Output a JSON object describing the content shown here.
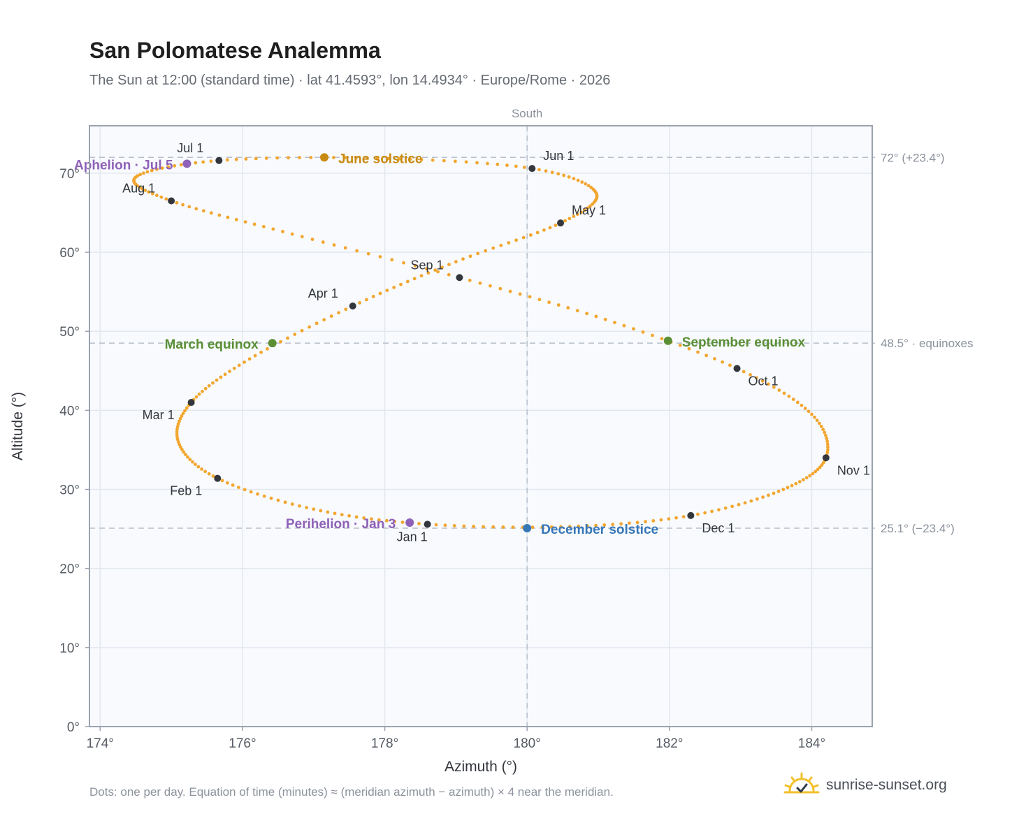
{
  "header": {
    "title": "San Polomatese Analemma",
    "subtitle": "The Sun at 12:00 (standard time) · lat 41.4593°, lon 14.4934° · Europe/Rome · 2026"
  },
  "footer": {
    "note": "Dots: one per day. Equation of time (minutes) ≈ (meridian azimuth − azimuth) × 4 near the meridian.",
    "brand": "sunrise-sunset.org",
    "brand_icon": "sun-horizon-icon"
  },
  "chart_data": {
    "type": "scatter",
    "title": "San Polomatese Analemma",
    "xlabel": "Azimuth (°)",
    "ylabel": "Altitude (°)",
    "xlim": [
      173.85,
      184.85
    ],
    "ylim": [
      0,
      76
    ],
    "xticks": [
      174,
      176,
      178,
      180,
      182,
      184
    ],
    "yticks": [
      0,
      10,
      20,
      30,
      40,
      50,
      60,
      70
    ],
    "x_tick_suffix": "°",
    "y_tick_suffix": "°",
    "grid": true,
    "meridian": {
      "x": 180,
      "label": "South"
    },
    "reference_lines": [
      {
        "y": 72.0,
        "label": "72° (+23.4°)"
      },
      {
        "y": 48.5,
        "label": "48.5° · equinoxes"
      },
      {
        "y": 25.1,
        "label": "25.1° (−23.4°)"
      }
    ],
    "month_points": [
      {
        "label": "Jan 1",
        "x": 178.6,
        "y": 25.6
      },
      {
        "label": "Feb 1",
        "x": 175.65,
        "y": 31.4
      },
      {
        "label": "Mar 1",
        "x": 175.28,
        "y": 41.0
      },
      {
        "label": "Apr 1",
        "x": 177.55,
        "y": 53.2
      },
      {
        "label": "May 1",
        "x": 180.47,
        "y": 63.7
      },
      {
        "label": "Jun 1",
        "x": 180.07,
        "y": 70.6
      },
      {
        "label": "Jul 1",
        "x": 175.67,
        "y": 71.6
      },
      {
        "label": "Aug 1",
        "x": 175.0,
        "y": 66.5
      },
      {
        "label": "Sep 1",
        "x": 179.05,
        "y": 56.8
      },
      {
        "label": "Oct 1",
        "x": 182.95,
        "y": 45.3
      },
      {
        "label": "Nov 1",
        "x": 184.2,
        "y": 34.0
      },
      {
        "label": "Dec 1",
        "x": 182.3,
        "y": 26.7
      }
    ],
    "special_points": [
      {
        "label": "June solstice",
        "x": 177.15,
        "y": 72.0,
        "color": "#c98a12"
      },
      {
        "label": "Aphelion · Jul 5",
        "x": 175.22,
        "y": 71.2,
        "color": "#8e62b8"
      },
      {
        "label": "March equinox",
        "x": 176.42,
        "y": 48.5,
        "color": "#5a8f35"
      },
      {
        "label": "September equinox",
        "x": 181.98,
        "y": 48.8,
        "color": "#5a8f35"
      },
      {
        "label": "Perihelion · Jan 3",
        "x": 178.35,
        "y": 25.8,
        "color": "#8e62b8"
      },
      {
        "label": "December solstice",
        "x": 180.0,
        "y": 25.1,
        "color": "#3677b8"
      }
    ],
    "curve_keypoints": [
      {
        "date": "Jan 1",
        "x": 178.6,
        "y": 25.6
      },
      {
        "date": "Jan 15",
        "x": 177.0,
        "y": 27.5
      },
      {
        "date": "Feb 1",
        "x": 175.65,
        "y": 31.4
      },
      {
        "date": "Feb 15",
        "x": 175.1,
        "y": 36.0
      },
      {
        "date": "Mar 1",
        "x": 175.28,
        "y": 41.0
      },
      {
        "date": "Mar 15",
        "x": 176.1,
        "y": 46.5
      },
      {
        "date": "Apr 1",
        "x": 177.55,
        "y": 53.2
      },
      {
        "date": "Apr 15",
        "x": 179.0,
        "y": 58.8
      },
      {
        "date": "May 1",
        "x": 180.47,
        "y": 63.7
      },
      {
        "date": "May 15",
        "x": 180.97,
        "y": 67.5
      },
      {
        "date": "Jun 1",
        "x": 180.07,
        "y": 70.6
      },
      {
        "date": "Jun 15",
        "x": 177.9,
        "y": 71.9
      },
      {
        "date": "Jul 1",
        "x": 175.67,
        "y": 71.6
      },
      {
        "date": "Jul 15",
        "x": 174.5,
        "y": 69.5
      },
      {
        "date": "Aug 1",
        "x": 175.0,
        "y": 66.5
      },
      {
        "date": "Aug 15",
        "x": 176.7,
        "y": 62.3
      },
      {
        "date": "Sep 1",
        "x": 179.05,
        "y": 56.8
      },
      {
        "date": "Sep 15",
        "x": 181.1,
        "y": 51.5
      },
      {
        "date": "Oct 1",
        "x": 182.95,
        "y": 45.3
      },
      {
        "date": "Oct 15",
        "x": 184.0,
        "y": 39.5
      },
      {
        "date": "Nov 1",
        "x": 184.2,
        "y": 34.0
      },
      {
        "date": "Nov 15",
        "x": 183.6,
        "y": 30.0
      },
      {
        "date": "Dec 1",
        "x": 182.3,
        "y": 26.7
      },
      {
        "date": "Dec 15",
        "x": 180.6,
        "y": 25.3
      }
    ],
    "colors": {
      "curve": "#f2a62f",
      "month_point": "#33373d",
      "plot_bg": "#f8fafd",
      "grid": "#e3e8ef",
      "frame": "#9aa3b0",
      "reference_line": "#b7c0cc"
    }
  }
}
